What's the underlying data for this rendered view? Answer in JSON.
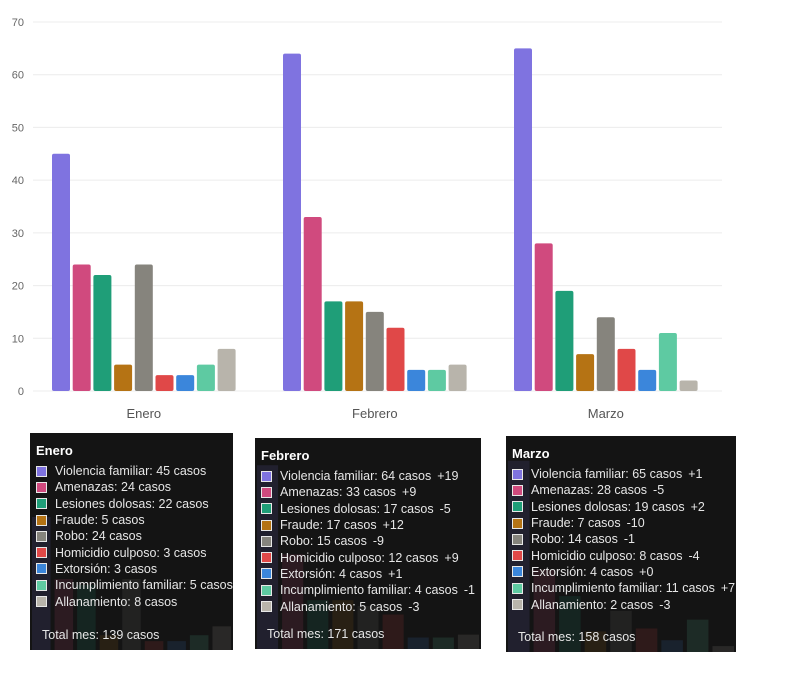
{
  "colors": {
    "series": [
      "#7f73e0",
      "#d04a7e",
      "#1f9e78",
      "#b57314",
      "#86847d",
      "#e04848",
      "#3b86db",
      "#5ecaa2",
      "#b8b4ab"
    ],
    "grid": "#ececec",
    "tooltip_bg": "#141414"
  },
  "chart_data": {
    "type": "bar",
    "categories": [
      "Enero",
      "Febrero",
      "Marzo"
    ],
    "series": [
      {
        "name": "Violencia familiar",
        "values": [
          45,
          64,
          65
        ]
      },
      {
        "name": "Amenazas",
        "values": [
          24,
          33,
          28
        ]
      },
      {
        "name": "Lesiones dolosas",
        "values": [
          22,
          17,
          19
        ]
      },
      {
        "name": "Fraude",
        "values": [
          5,
          17,
          7
        ]
      },
      {
        "name": "Robo",
        "values": [
          24,
          15,
          14
        ]
      },
      {
        "name": "Homicidio culposo",
        "values": [
          3,
          12,
          8
        ]
      },
      {
        "name": "Extorsión",
        "values": [
          3,
          4,
          4
        ]
      },
      {
        "name": "Incumplimiento familiar",
        "values": [
          5,
          4,
          11
        ]
      },
      {
        "name": "Allanamiento",
        "values": [
          8,
          5,
          2
        ]
      }
    ],
    "yticks": [
      "0",
      "10",
      "20",
      "30",
      "40",
      "50",
      "60",
      "70"
    ],
    "ylim": [
      0,
      70
    ],
    "grid": true,
    "legend": "none"
  },
  "tooltips": [
    {
      "title": "Enero",
      "rows": [
        {
          "label": "Violencia familiar: 45 casos",
          "delta": ""
        },
        {
          "label": "Amenazas: 24 casos",
          "delta": ""
        },
        {
          "label": "Lesiones dolosas: 22 casos",
          "delta": ""
        },
        {
          "label": "Fraude: 5 casos",
          "delta": ""
        },
        {
          "label": "Robo: 24 casos",
          "delta": ""
        },
        {
          "label": "Homicidio culposo: 3 casos",
          "delta": ""
        },
        {
          "label": "Extorsión: 3 casos",
          "delta": ""
        },
        {
          "label": "Incumplimiento familiar: 5 casos",
          "delta": ""
        },
        {
          "label": "Allanamiento: 8 casos",
          "delta": ""
        }
      ],
      "total": "Total mes: 139 casos"
    },
    {
      "title": "Febrero",
      "rows": [
        {
          "label": "Violencia familiar: 64 casos",
          "delta": "+19"
        },
        {
          "label": "Amenazas: 33 casos",
          "delta": "+9"
        },
        {
          "label": "Lesiones dolosas: 17 casos",
          "delta": "-5"
        },
        {
          "label": "Fraude: 17 casos",
          "delta": "+12"
        },
        {
          "label": "Robo: 15 casos",
          "delta": "-9"
        },
        {
          "label": "Homicidio culposo: 12 casos",
          "delta": "+9"
        },
        {
          "label": "Extorsión: 4 casos",
          "delta": "+1"
        },
        {
          "label": "Incumplimiento familiar: 4 casos",
          "delta": "-1"
        },
        {
          "label": "Allanamiento: 5 casos",
          "delta": "-3"
        }
      ],
      "total": "Total mes: 171 casos"
    },
    {
      "title": "Marzo",
      "rows": [
        {
          "label": "Violencia familiar: 65 casos",
          "delta": "+1"
        },
        {
          "label": "Amenazas: 28 casos",
          "delta": "-5"
        },
        {
          "label": "Lesiones dolosas: 19 casos",
          "delta": "+2"
        },
        {
          "label": "Fraude: 7 casos",
          "delta": "-10"
        },
        {
          "label": "Robo: 14 casos",
          "delta": "-1"
        },
        {
          "label": "Homicidio culposo: 8 casos",
          "delta": "-4"
        },
        {
          "label": "Extorsión: 4 casos",
          "delta": "+0"
        },
        {
          "label": "Incumplimiento familiar: 11 casos",
          "delta": "+7"
        },
        {
          "label": "Allanamiento: 2 casos",
          "delta": "-3"
        }
      ],
      "total": "Total mes: 158 casos"
    }
  ]
}
